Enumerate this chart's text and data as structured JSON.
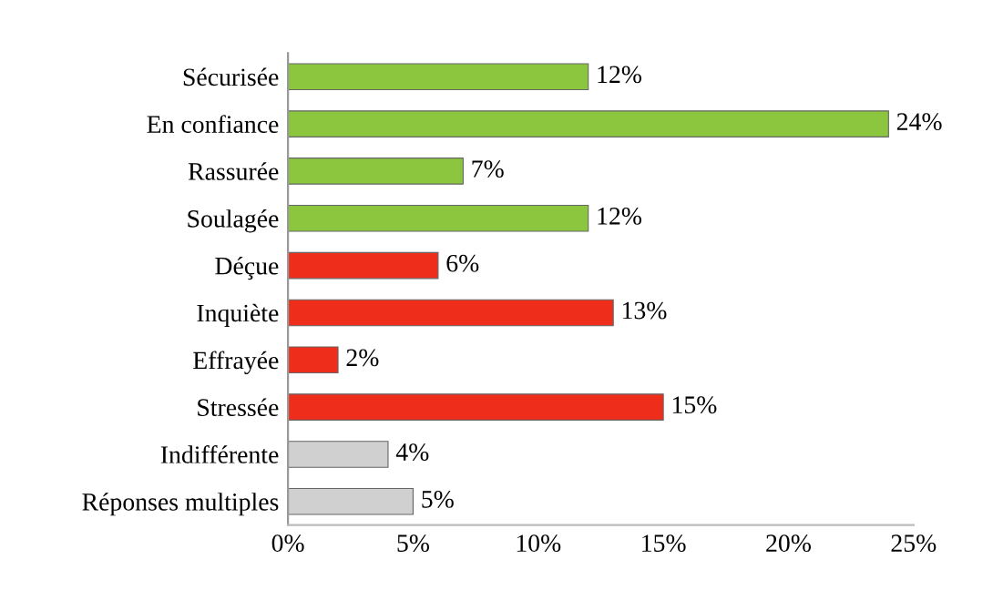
{
  "chart_data": {
    "type": "bar",
    "orientation": "horizontal",
    "categories": [
      "Sécurisée",
      "En confiance",
      "Rassurée",
      "Soulagée",
      "Déçue",
      "Inquiète",
      "Effrayée",
      "Stressée",
      "Indifférente",
      "Réponses multiples"
    ],
    "values": [
      12,
      24,
      7,
      12,
      6,
      13,
      2,
      15,
      4,
      5
    ],
    "colors": [
      "#8cc63f",
      "#8cc63f",
      "#8cc63f",
      "#8cc63f",
      "#ee2d1a",
      "#ee2d1a",
      "#ee2d1a",
      "#ee2d1a",
      "#d0d0d0",
      "#d0d0d0"
    ],
    "value_labels": [
      "12%",
      "24%",
      "7%",
      "12%",
      "6%",
      "13%",
      "2%",
      "15%",
      "4%",
      "5%"
    ],
    "xlim": [
      0,
      25
    ],
    "xticks": [
      {
        "value": 0,
        "label": "0%"
      },
      {
        "value": 5,
        "label": "5%"
      },
      {
        "value": 10,
        "label": "10%"
      },
      {
        "value": 15,
        "label": "15%"
      },
      {
        "value": 20,
        "label": "20%"
      },
      {
        "value": 25,
        "label": "25%"
      }
    ],
    "grid": false,
    "legend": false
  }
}
